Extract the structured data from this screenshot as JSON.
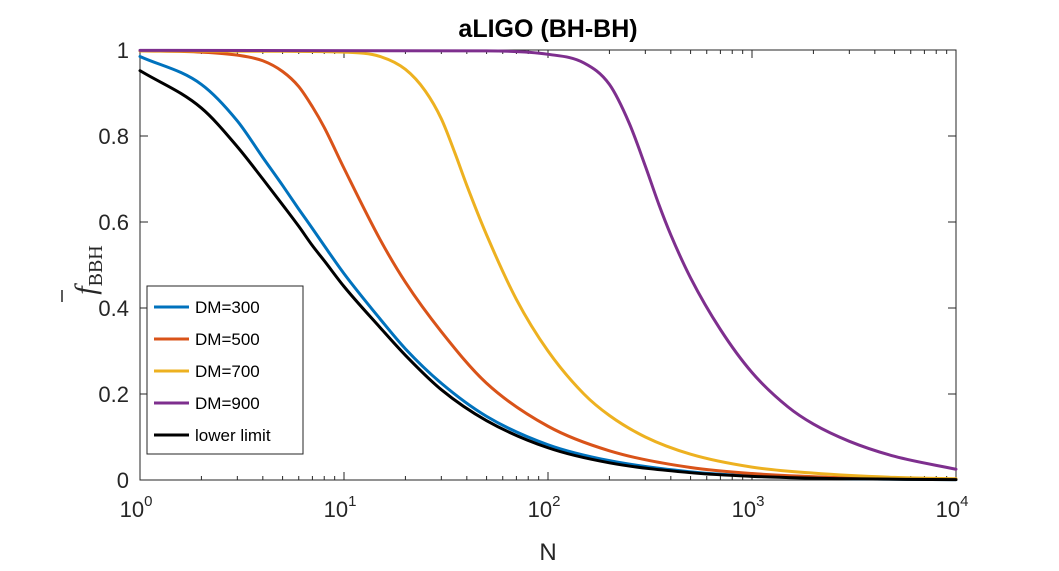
{
  "chart_data": {
    "type": "line",
    "title": "aLIGO (BH-BH)",
    "xlabel": "N",
    "ylabel": "f",
    "ylabel_subscript": "BBH",
    "xscale": "log",
    "xlim": [
      1,
      10000
    ],
    "ylim": [
      0,
      1
    ],
    "x_ticks": [
      {
        "base": "10",
        "exp": "0",
        "value": 1
      },
      {
        "base": "10",
        "exp": "1",
        "value": 10
      },
      {
        "base": "10",
        "exp": "2",
        "value": 100
      },
      {
        "base": "10",
        "exp": "3",
        "value": 1000
      },
      {
        "base": "10",
        "exp": "4",
        "value": 10000
      }
    ],
    "y_ticks": [
      {
        "label": "0",
        "value": 0
      },
      {
        "label": "0.2",
        "value": 0.2
      },
      {
        "label": "0.4",
        "value": 0.4
      },
      {
        "label": "0.6",
        "value": 0.6
      },
      {
        "label": "0.8",
        "value": 0.8
      },
      {
        "label": "1",
        "value": 1
      }
    ],
    "grid": false,
    "legend_position": "bottom-left",
    "series": [
      {
        "name": "DM=300",
        "color": "#0072BD",
        "points": [
          [
            1,
            0.985
          ],
          [
            2,
            0.92
          ],
          [
            3,
            0.835
          ],
          [
            4,
            0.75
          ],
          [
            5,
            0.685
          ],
          [
            6,
            0.63
          ],
          [
            7,
            0.585
          ],
          [
            8,
            0.545
          ],
          [
            10,
            0.48
          ],
          [
            15,
            0.375
          ],
          [
            20,
            0.305
          ],
          [
            30,
            0.225
          ],
          [
            50,
            0.148
          ],
          [
            100,
            0.082
          ],
          [
            200,
            0.045
          ],
          [
            500,
            0.019
          ],
          [
            1000,
            0.0095
          ],
          [
            3000,
            0.0032
          ],
          [
            10000,
            0.001
          ]
        ]
      },
      {
        "name": "DM=500",
        "color": "#D95319",
        "points": [
          [
            1,
            0.998
          ],
          [
            2,
            0.995
          ],
          [
            3,
            0.988
          ],
          [
            4,
            0.975
          ],
          [
            5,
            0.95
          ],
          [
            6,
            0.915
          ],
          [
            7,
            0.868
          ],
          [
            8,
            0.82
          ],
          [
            10,
            0.725
          ],
          [
            15,
            0.56
          ],
          [
            20,
            0.46
          ],
          [
            30,
            0.345
          ],
          [
            50,
            0.225
          ],
          [
            100,
            0.125
          ],
          [
            200,
            0.068
          ],
          [
            500,
            0.029
          ],
          [
            1000,
            0.015
          ],
          [
            3000,
            0.005
          ],
          [
            10000,
            0.0015
          ]
        ]
      },
      {
        "name": "DM=700",
        "color": "#EDB120",
        "points": [
          [
            1,
            0.998
          ],
          [
            5,
            0.997
          ],
          [
            10,
            0.995
          ],
          [
            15,
            0.985
          ],
          [
            20,
            0.955
          ],
          [
            25,
            0.905
          ],
          [
            30,
            0.84
          ],
          [
            35,
            0.76
          ],
          [
            40,
            0.685
          ],
          [
            50,
            0.57
          ],
          [
            70,
            0.42
          ],
          [
            100,
            0.3
          ],
          [
            150,
            0.2
          ],
          [
            200,
            0.15
          ],
          [
            300,
            0.1
          ],
          [
            500,
            0.06
          ],
          [
            1000,
            0.03
          ],
          [
            2000,
            0.016
          ],
          [
            5000,
            0.006
          ],
          [
            10000,
            0.003
          ]
        ]
      },
      {
        "name": "DM=900",
        "color": "#7E2F8E",
        "points": [
          [
            1,
            0.999
          ],
          [
            50,
            0.998
          ],
          [
            100,
            0.99
          ],
          [
            150,
            0.97
          ],
          [
            200,
            0.92
          ],
          [
            250,
            0.83
          ],
          [
            300,
            0.73
          ],
          [
            350,
            0.64
          ],
          [
            400,
            0.57
          ],
          [
            500,
            0.47
          ],
          [
            700,
            0.35
          ],
          [
            1000,
            0.25
          ],
          [
            1500,
            0.17
          ],
          [
            2000,
            0.13
          ],
          [
            3000,
            0.09
          ],
          [
            5000,
            0.055
          ],
          [
            10000,
            0.025
          ]
        ]
      },
      {
        "name": "lower limit",
        "color": "#000000",
        "points": [
          [
            1,
            0.952
          ],
          [
            2,
            0.865
          ],
          [
            3,
            0.775
          ],
          [
            4,
            0.7
          ],
          [
            5,
            0.64
          ],
          [
            6,
            0.59
          ],
          [
            7,
            0.545
          ],
          [
            8,
            0.51
          ],
          [
            10,
            0.45
          ],
          [
            15,
            0.355
          ],
          [
            20,
            0.29
          ],
          [
            30,
            0.21
          ],
          [
            50,
            0.138
          ],
          [
            100,
            0.075
          ],
          [
            200,
            0.04
          ],
          [
            500,
            0.017
          ],
          [
            1000,
            0.0085
          ],
          [
            3000,
            0.0028
          ],
          [
            10000,
            0.0009
          ]
        ]
      }
    ]
  }
}
